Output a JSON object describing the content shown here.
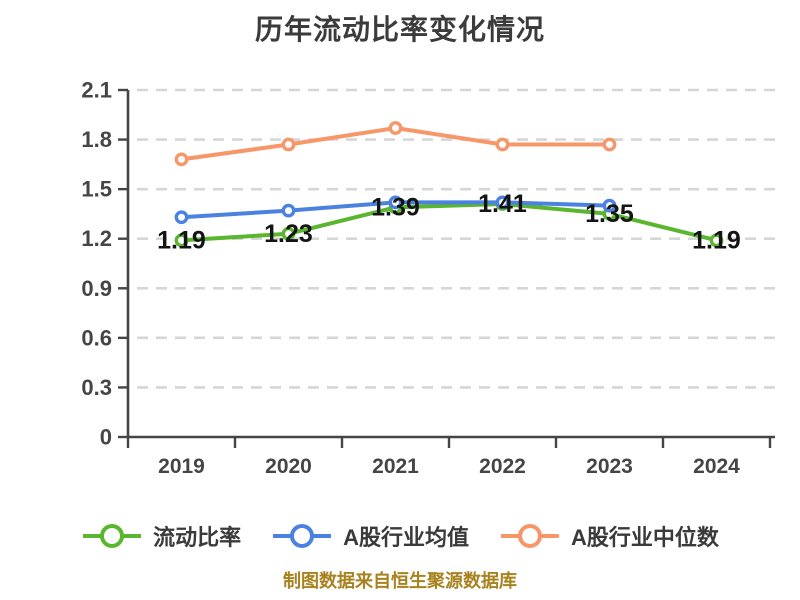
{
  "title": "历年流动比率变化情况",
  "footer_note": "制图数据来自恒生聚源数据库",
  "chart_data": {
    "type": "line",
    "title": "历年流动比率变化情况",
    "categories": [
      "2019",
      "2020",
      "2021",
      "2022",
      "2023",
      "2024"
    ],
    "series": [
      {
        "name": "流动比率",
        "color": "#5ab62f",
        "values": [
          1.19,
          1.23,
          1.39,
          1.41,
          1.35,
          1.19
        ],
        "show_point_labels": true
      },
      {
        "name": "A股行业均值",
        "color": "#4b82e1",
        "values": [
          1.33,
          1.37,
          1.42,
          1.42,
          1.4,
          null
        ],
        "show_point_labels": false
      },
      {
        "name": "A股行业中位数",
        "color": "#f79669",
        "values": [
          1.68,
          1.77,
          1.87,
          1.77,
          1.77,
          null
        ],
        "show_point_labels": false
      }
    ],
    "xlabel": "",
    "ylabel": "",
    "ylim": [
      0,
      2.1
    ],
    "yticks": [
      0,
      0.3,
      0.6,
      0.9,
      1.2,
      1.5,
      1.8,
      2.1
    ],
    "grid": "horizontal-dashed",
    "grid_color": "#d6d6d6",
    "axis_color": "#454545",
    "point_label_color": "#141414",
    "legend_position": "bottom",
    "marker_style": "open-circle-white-fill"
  }
}
